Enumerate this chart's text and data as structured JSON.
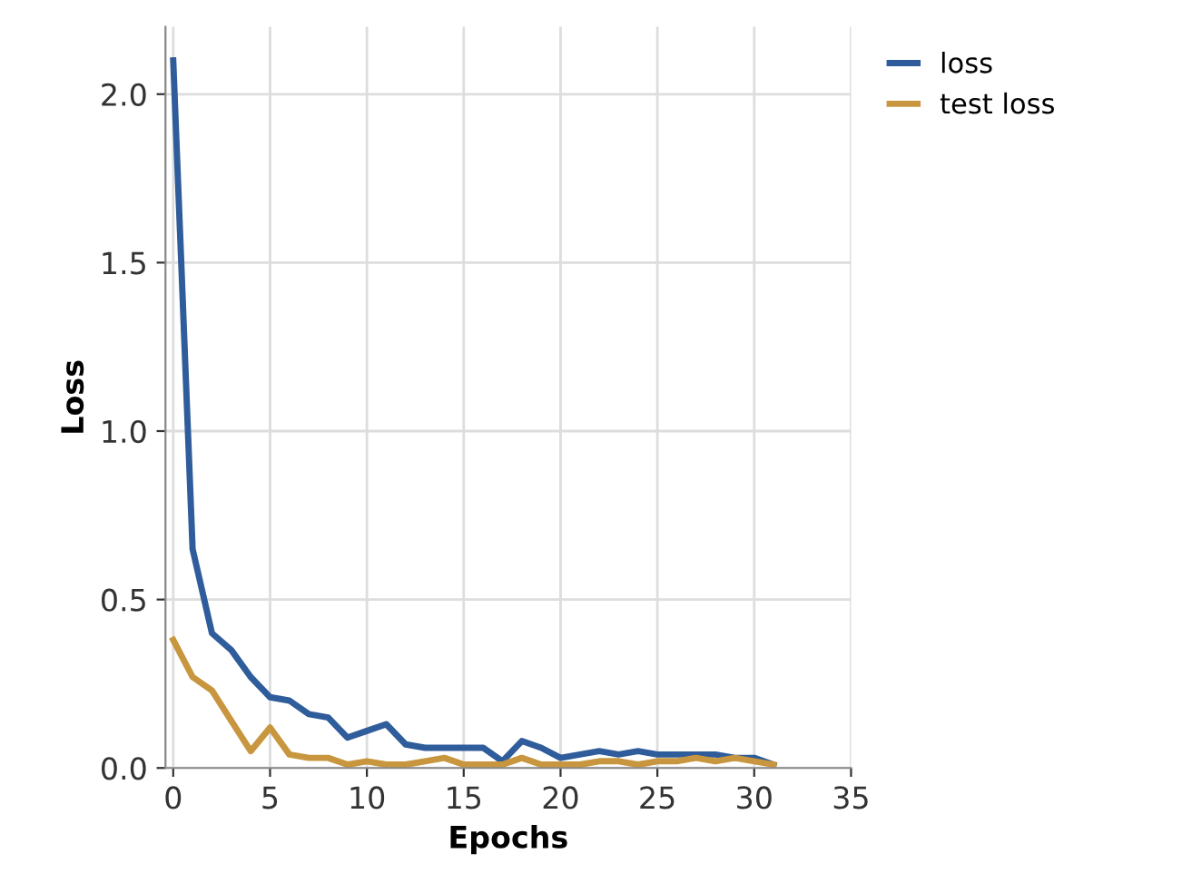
{
  "chart_data": {
    "type": "line",
    "xlabel": "Epochs",
    "ylabel": "Loss",
    "x": [
      0,
      1,
      2,
      3,
      4,
      5,
      6,
      7,
      8,
      9,
      10,
      11,
      12,
      13,
      14,
      15,
      16,
      17,
      18,
      19,
      20,
      21,
      22,
      23,
      24,
      25,
      26,
      27,
      28,
      29,
      30,
      31
    ],
    "series": [
      {
        "name": "loss",
        "color": "#2f5c9a",
        "values": [
          2.1,
          0.65,
          0.4,
          0.35,
          0.27,
          0.21,
          0.2,
          0.16,
          0.15,
          0.09,
          0.11,
          0.13,
          0.07,
          0.06,
          0.06,
          0.06,
          0.06,
          0.02,
          0.08,
          0.06,
          0.03,
          0.04,
          0.05,
          0.04,
          0.05,
          0.04,
          0.04,
          0.04,
          0.04,
          0.03,
          0.03,
          0.01
        ]
      },
      {
        "name": "test loss",
        "color": "#c8963e",
        "values": [
          0.38,
          0.27,
          0.23,
          0.14,
          0.05,
          0.12,
          0.04,
          0.03,
          0.03,
          0.01,
          0.02,
          0.01,
          0.01,
          0.02,
          0.03,
          0.01,
          0.01,
          0.01,
          0.03,
          0.01,
          0.01,
          0.01,
          0.02,
          0.02,
          0.01,
          0.02,
          0.02,
          0.03,
          0.02,
          0.03,
          0.02,
          0.01
        ]
      }
    ],
    "xlim": [
      -0.4,
      35
    ],
    "xticks": [
      0,
      5,
      10,
      15,
      20,
      25,
      30,
      35
    ],
    "ylim": [
      0,
      2.2
    ],
    "yticks": [
      {
        "value": 0,
        "label": "0.0"
      },
      {
        "value": 0.5,
        "label": "0.5"
      },
      {
        "value": 1,
        "label": "1.0"
      },
      {
        "value": 1.5,
        "label": "1.5"
      },
      {
        "value": 2,
        "label": "2.0"
      }
    ],
    "grid": true,
    "legend": "top right",
    "marker": "none",
    "line_style": "solid"
  }
}
